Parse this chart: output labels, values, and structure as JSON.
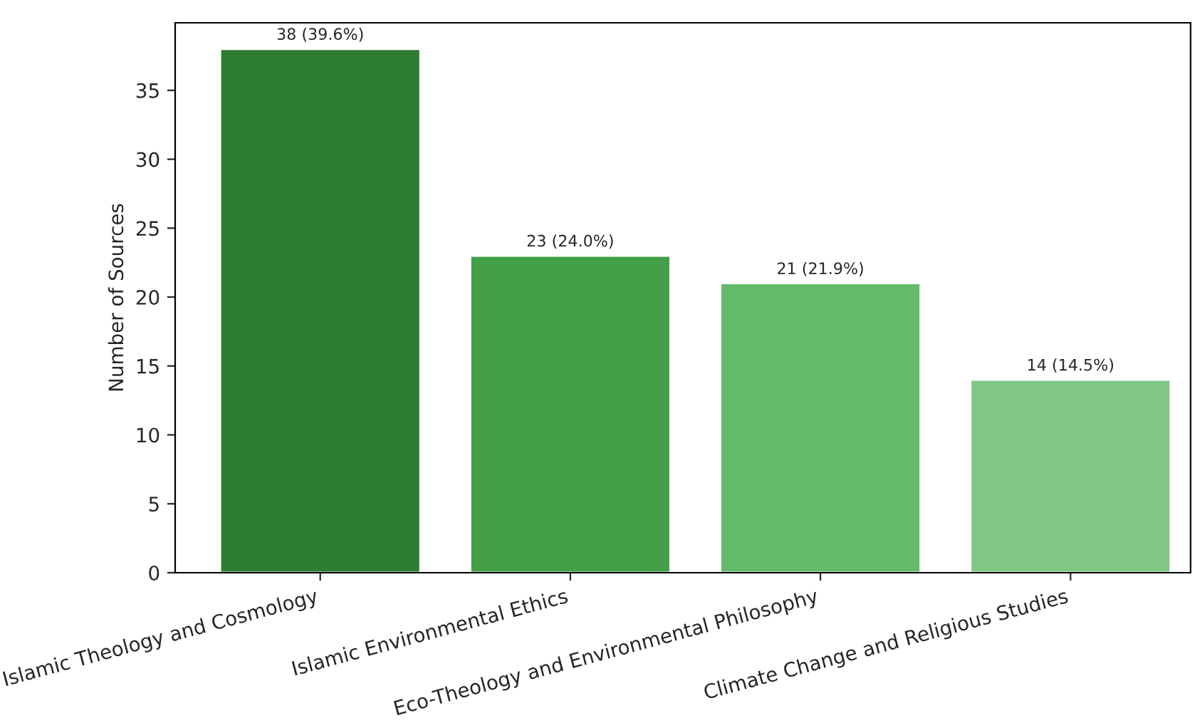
{
  "chart_data": {
    "type": "bar",
    "ylabel": "Number of Sources",
    "categories": [
      "Islamic Theology and Cosmology",
      "Islamic Environmental Ethics",
      "Eco-Theology and Environmental Philosophy",
      "Climate Change and Religious Studies"
    ],
    "values": [
      38,
      23,
      21,
      14
    ],
    "colors": [
      "#2e7d32",
      "#43a047",
      "#66bb6a",
      "#81c784"
    ],
    "value_labels": [
      "38 (39.6%)",
      "23 (24.0%)",
      "21 (21.9%)",
      "14 (14.5%)"
    ],
    "ylim": [
      0,
      39.9
    ],
    "yticks": [
      0,
      5,
      10,
      15,
      20,
      25,
      30,
      35
    ],
    "grid": false
  }
}
